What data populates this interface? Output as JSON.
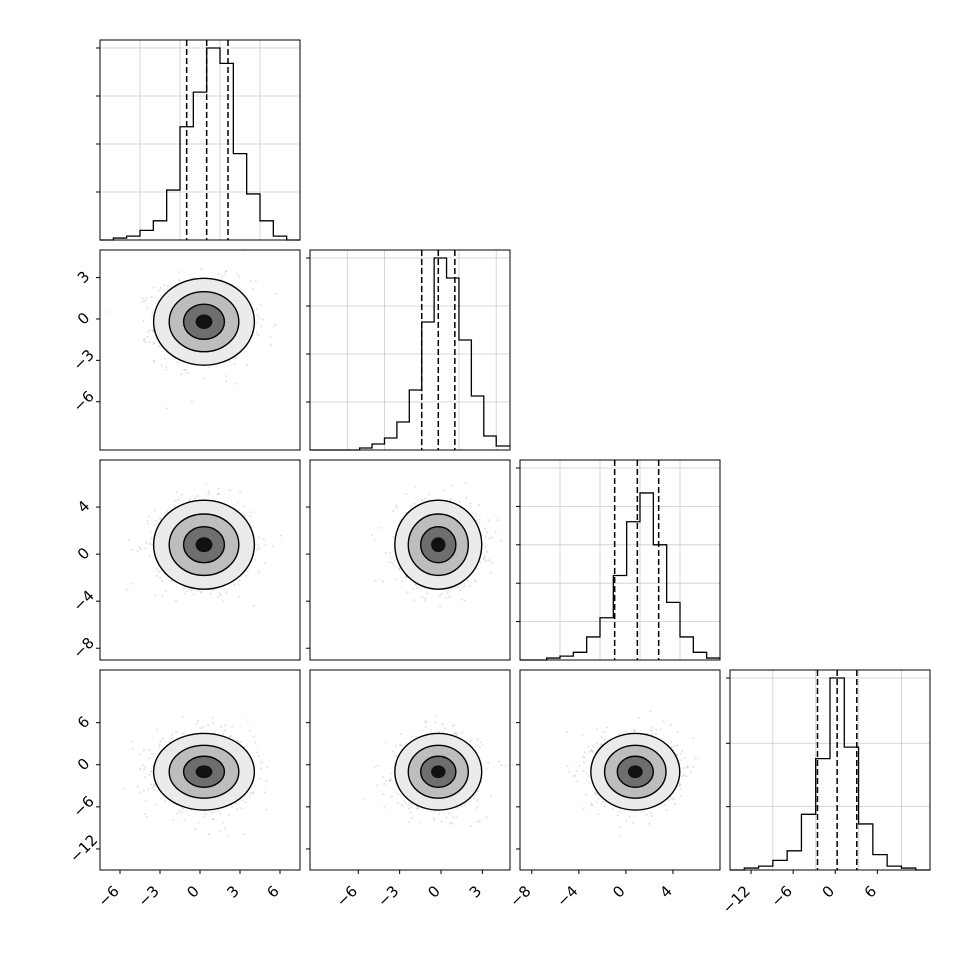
{
  "chart_data": {
    "type": "corner",
    "ndim": 4,
    "grid": true,
    "quantiles": [
      0.16,
      0.5,
      0.84
    ],
    "params": [
      {
        "range": [
          -7.5,
          7.5
        ],
        "hist_ticks": [
          0,
          0.25,
          0.5,
          0.75,
          1.0
        ],
        "bins": [
          -7.5,
          -6.5,
          -5.5,
          -4.5,
          -3.5,
          -2.5,
          -1.5,
          -0.5,
          0.5,
          1.5,
          2.5,
          3.5,
          4.5,
          5.5,
          6.5,
          7.5
        ],
        "hist": [
          0.0,
          0.01,
          0.02,
          0.05,
          0.1,
          0.26,
          0.59,
          0.77,
          1.0,
          0.92,
          0.45,
          0.24,
          0.1,
          0.02,
          0.0
        ],
        "quantile_values": [
          -1.0,
          0.5,
          2.1
        ],
        "tick_labels": [
          "−6",
          "−3",
          "0",
          "3",
          "6"
        ],
        "tick_values": [
          -6,
          -3,
          0,
          3,
          6
        ]
      },
      {
        "range": [
          -9.5,
          5.0
        ],
        "hist_ticks": [
          0.0,
          0.24,
          0.48,
          0.72,
          0.96
        ],
        "bins": [
          -9.5,
          -8.6,
          -7.7,
          -6.8,
          -5.9,
          -5.0,
          -4.1,
          -3.2,
          -2.3,
          -1.4,
          -0.5,
          0.4,
          1.3,
          2.2,
          3.1,
          4.0,
          5.0
        ],
        "hist": [
          0.0,
          0.0,
          0.0,
          0.0,
          0.01,
          0.03,
          0.06,
          0.14,
          0.3,
          0.64,
          0.96,
          0.86,
          0.55,
          0.27,
          0.07,
          0.02
        ],
        "quantile_values": [
          -1.4,
          -0.2,
          1.0
        ],
        "tick_labels": [
          "3",
          "0",
          "−3",
          "−6"
        ],
        "tick_values": [
          3,
          0,
          -3,
          -6
        ],
        "x_tick_labels": [
          "−6",
          "−3",
          "0",
          "3"
        ],
        "x_tick_values": [
          -6,
          -3,
          0,
          3
        ]
      },
      {
        "range": [
          -9.0,
          8.0
        ],
        "hist_ticks": [
          0.0,
          0.2,
          0.4,
          0.6,
          0.8,
          1.0
        ],
        "bins": [
          -8.0,
          -7.0,
          -6.0,
          -5.0,
          -4.0,
          -3.0,
          -2.0,
          -1.0,
          0.0,
          1.0,
          2.0,
          3.0,
          4.0,
          5.0,
          6.0,
          7.0
        ],
        "hist": [
          0.0,
          0.0,
          0.01,
          0.02,
          0.04,
          0.12,
          0.22,
          0.44,
          0.72,
          0.87,
          0.6,
          0.3,
          0.12,
          0.04,
          0.01
        ],
        "quantile_values": [
          -0.9,
          0.8,
          2.4
        ],
        "tick_labels": [
          "4",
          "0",
          "−4",
          "−8"
        ],
        "tick_values": [
          4,
          0,
          -4,
          -8
        ],
        "x_tick_labels": [
          "−8",
          "−4",
          "0",
          "4"
        ],
        "x_tick_values": [
          -8,
          -4,
          0,
          4
        ]
      },
      {
        "range": [
          -15.0,
          13.5
        ],
        "hist_ticks": [
          0.0,
          0.33,
          0.66,
          1.0
        ],
        "bins": [
          -13.0,
          -11.4,
          -9.8,
          -8.2,
          -6.6,
          -5.0,
          -3.4,
          -1.8,
          -0.2,
          1.4,
          3.0,
          4.6,
          6.2,
          7.8,
          9.4
        ],
        "hist": [
          0.0,
          0.01,
          0.02,
          0.05,
          0.1,
          0.29,
          0.58,
          1.0,
          0.64,
          0.24,
          0.08,
          0.02,
          0.01,
          0.0
        ],
        "quantile_values": [
          -3.2,
          -1.0,
          1.2
        ],
        "tick_labels": [
          "6",
          "0",
          "−6",
          "−12"
        ],
        "tick_values": [
          6,
          0,
          -6,
          -12
        ],
        "x_tick_labels": [
          "−12",
          "−6",
          "0",
          "6"
        ],
        "x_tick_values": [
          -12,
          -6,
          0,
          6
        ]
      }
    ],
    "means": [
      0.3,
      -0.2,
      0.8,
      -1.0
    ],
    "sigmas": [
      1.8,
      1.5,
      1.8,
      2.6
    ]
  }
}
